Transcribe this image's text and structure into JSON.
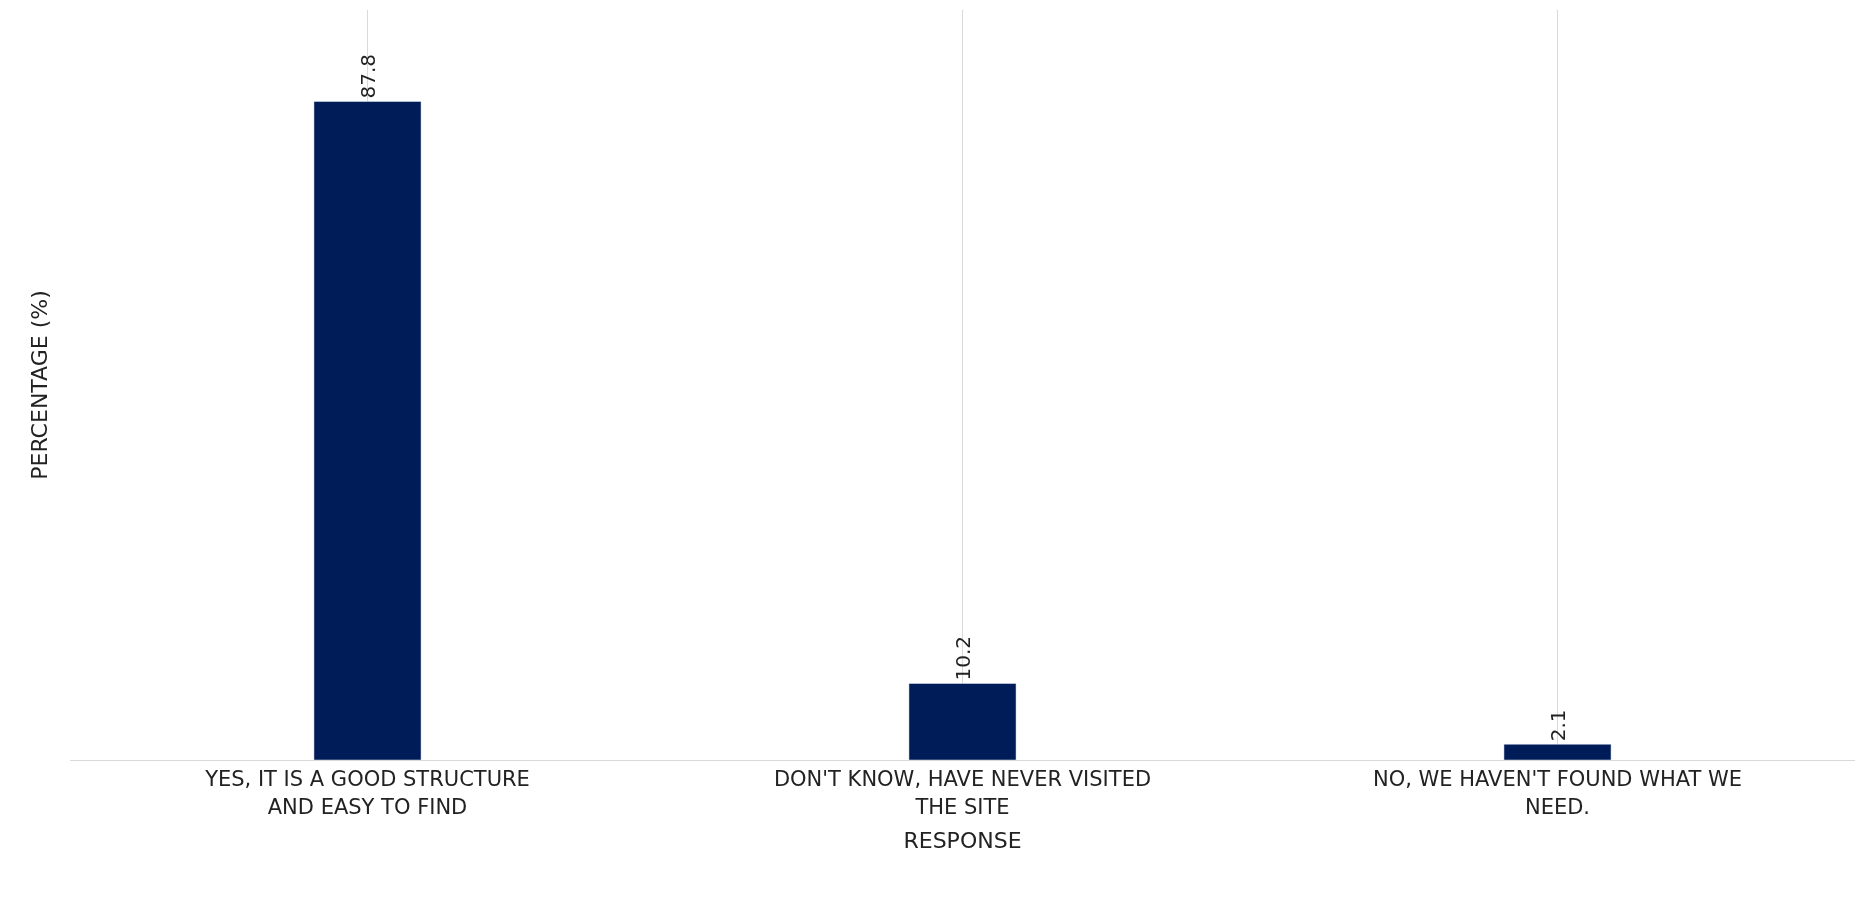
{
  "chart_data": {
    "type": "bar",
    "xlabel": "RESPONSE",
    "ylabel": "PERCENTAGE (%)",
    "categories": [
      "YES, IT IS A GOOD STRUCTURE AND EASY TO FIND",
      "DON'T KNOW, HAVE NEVER VISITED THE SITE",
      "NO, WE HAVEN'T FOUND WHAT WE NEED."
    ],
    "values": [
      87.8,
      10.2,
      2.1
    ],
    "color": "#001c58",
    "ylim": [
      0,
      100
    ],
    "data_labels": true,
    "grid": "x",
    "tick_labels": "x"
  }
}
